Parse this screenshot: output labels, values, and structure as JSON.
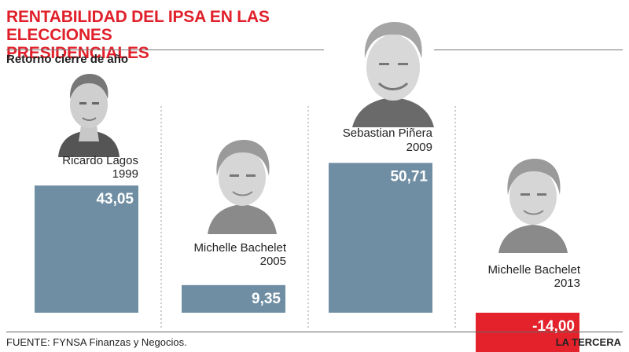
{
  "header": {
    "title_line1": "RENTABILIDAD DEL IPSA EN LAS ELECCIONES",
    "title_line2": "PRESIDENCIALES",
    "subtitle": "Retorno cierre de año"
  },
  "footer": {
    "source": "FUENTE: FYNSA Finanzas y Negocios.",
    "brand": "LA TERCERA"
  },
  "colors": {
    "title": "#e0202a",
    "positive_bar": "#6f8ea3",
    "negative_bar": "#e3222b",
    "label": "#ffffff"
  },
  "chart_data": {
    "type": "bar",
    "title": "RENTABILIDAD DEL IPSA EN LAS ELECCIONES PRESIDENCIALES",
    "subtitle": "Retorno cierre de año",
    "categories": [
      "1999",
      "2005",
      "2009",
      "2013"
    ],
    "presidents": [
      "Ricardo Lagos",
      "Michelle Bachelet",
      "Sebastian Piñera",
      "Michelle Bachelet"
    ],
    "values": [
      43.05,
      9.35,
      50.71,
      -14.0
    ],
    "value_labels": [
      "43,05",
      "9,35",
      "50,71",
      "-14,00"
    ],
    "ylim": [
      -14,
      51
    ],
    "grid": false
  }
}
